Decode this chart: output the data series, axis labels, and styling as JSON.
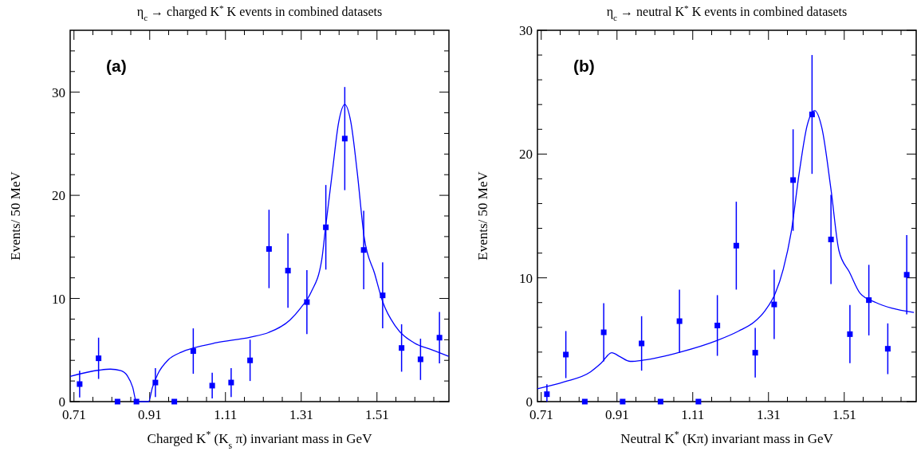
{
  "chart_data": [
    {
      "type": "scatter",
      "title": "η$_{c}$ → charged K$^{*}$ K events in combined datasets",
      "xlabel": "Charged K$^{*}$ (K$_{s}$ π) invariant mass in GeV",
      "ylabel": "Events/ 50 MeV",
      "annotations": [
        "(a)"
      ],
      "xlim": [
        0.7,
        1.7
      ],
      "ylim": [
        0,
        36
      ],
      "xticks": [
        0.71,
        {
          "value": 0.76,
          "label": null
        },
        {
          "value": 0.81,
          "label": null
        },
        {
          "value": 0.86,
          "label": null
        },
        0.91,
        {
          "value": 0.96,
          "label": null
        },
        {
          "value": 1.01,
          "label": null
        },
        {
          "value": 1.06,
          "label": null
        },
        1.11,
        {
          "value": 1.16,
          "label": null
        },
        {
          "value": 1.21,
          "label": null
        },
        {
          "value": 1.26,
          "label": null
        },
        1.31,
        {
          "value": 1.36,
          "label": null
        },
        {
          "value": 1.41,
          "label": null
        },
        {
          "value": 1.46,
          "label": null
        },
        1.51,
        {
          "value": 1.56,
          "label": null
        },
        {
          "value": 1.61,
          "label": null
        },
        {
          "value": 1.66,
          "label": null
        }
      ],
      "yticks": [
        0,
        {
          "value": 2,
          "label": null
        },
        {
          "value": 4,
          "label": null
        },
        {
          "value": 6,
          "label": null
        },
        {
          "value": 8,
          "label": null
        },
        10,
        {
          "value": 12,
          "label": null
        },
        {
          "value": 14,
          "label": null
        },
        {
          "value": 16,
          "label": null
        },
        {
          "value": 18,
          "label": null
        },
        20,
        {
          "value": 22,
          "label": null
        },
        {
          "value": 24,
          "label": null
        },
        {
          "value": 26,
          "label": null
        },
        {
          "value": 28,
          "label": null
        },
        30,
        {
          "value": 32,
          "label": null
        },
        {
          "value": 34,
          "label": null
        }
      ],
      "grid": false,
      "series": [
        {
          "marker": "square",
          "color": "#0000ff",
          "x": [
            0.725,
            0.775,
            0.825,
            0.875,
            0.925,
            0.975,
            1.025,
            1.075,
            1.125,
            1.175,
            1.225,
            1.275,
            1.325,
            1.375,
            1.425,
            1.475,
            1.525,
            1.575,
            1.625,
            1.675
          ],
          "values": [
            1.7,
            4.2,
            0,
            0,
            1.85,
            0,
            4.9,
            1.55,
            1.85,
            4.0,
            14.8,
            12.7,
            9.65,
            16.9,
            25.5,
            14.7,
            10.3,
            5.2,
            4.1,
            6.2
          ],
          "errors": [
            1.3,
            2.0,
            null,
            null,
            1.4,
            null,
            2.2,
            1.25,
            1.4,
            2.0,
            3.8,
            3.6,
            3.1,
            4.1,
            5.0,
            3.8,
            3.2,
            2.3,
            2.0,
            2.5
          ]
        },
        {
          "type": "line",
          "marker": "none",
          "color": "#0000ff",
          "x": [
            0.7,
            0.776,
            0.806,
            0.834,
            0.851,
            0.865,
            0.875,
            0.907,
            0.917,
            0.931,
            0.959,
            0.994,
            1.026,
            1.085,
            1.176,
            1.224,
            1.28,
            1.308,
            1.336,
            1.364,
            1.374,
            1.392,
            1.409,
            1.425,
            1.441,
            1.458,
            1.476,
            1.504,
            1.525,
            1.56,
            1.608,
            1.657,
            1.699
          ],
          "values": [
            2.45,
            3.05,
            3.15,
            3.0,
            2.5,
            1.4,
            0,
            0,
            1.35,
            2.65,
            4.05,
            4.8,
            5.2,
            5.7,
            6.25,
            6.7,
            7.9,
            9.05,
            10.6,
            13.7,
            16.8,
            22.2,
            27.1,
            28.8,
            27.1,
            22.2,
            16.0,
            12.4,
            9.7,
            7.25,
            5.7,
            5.0,
            4.4
          ]
        }
      ]
    },
    {
      "type": "scatter",
      "title": "η$_{c}$ → neutral K$^{*}$ K events in combined datasets",
      "xlabel": "Neutral K$^{*}$ (Kπ) invariant mass in GeV",
      "ylabel": "Events/ 50 MeV",
      "annotations": [
        "(b)"
      ],
      "xlim": [
        0.7,
        1.7
      ],
      "ylim": [
        0,
        30
      ],
      "xticks": [
        0.71,
        {
          "value": 0.76,
          "label": null
        },
        {
          "value": 0.81,
          "label": null
        },
        {
          "value": 0.86,
          "label": null
        },
        0.91,
        {
          "value": 0.96,
          "label": null
        },
        {
          "value": 1.01,
          "label": null
        },
        {
          "value": 1.06,
          "label": null
        },
        1.11,
        {
          "value": 1.16,
          "label": null
        },
        {
          "value": 1.21,
          "label": null
        },
        {
          "value": 1.26,
          "label": null
        },
        1.31,
        {
          "value": 1.36,
          "label": null
        },
        {
          "value": 1.41,
          "label": null
        },
        {
          "value": 1.46,
          "label": null
        },
        1.51,
        {
          "value": 1.56,
          "label": null
        },
        {
          "value": 1.61,
          "label": null
        },
        {
          "value": 1.66,
          "label": null
        }
      ],
      "yticks": [
        0,
        {
          "value": 2,
          "label": null
        },
        {
          "value": 4,
          "label": null
        },
        {
          "value": 6,
          "label": null
        },
        {
          "value": 8,
          "label": null
        },
        10,
        {
          "value": 12,
          "label": null
        },
        {
          "value": 14,
          "label": null
        },
        {
          "value": 16,
          "label": null
        },
        {
          "value": 18,
          "label": null
        },
        20,
        {
          "value": 22,
          "label": null
        },
        {
          "value": 24,
          "label": null
        },
        {
          "value": 26,
          "label": null
        },
        {
          "value": 28,
          "label": null
        },
        30
      ],
      "grid": false,
      "series": [
        {
          "marker": "square",
          "color": "#0000ff",
          "x": [
            0.725,
            0.775,
            0.825,
            0.875,
            0.925,
            0.975,
            1.025,
            1.075,
            1.125,
            1.175,
            1.225,
            1.275,
            1.325,
            1.375,
            1.425,
            1.475,
            1.525,
            1.575,
            1.625,
            1.675
          ],
          "values": [
            0.6,
            3.8,
            0,
            5.6,
            0,
            4.7,
            0,
            6.5,
            0,
            6.15,
            12.6,
            3.95,
            7.85,
            17.9,
            23.2,
            13.1,
            5.45,
            8.2,
            4.27,
            10.25
          ],
          "errors": [
            [
              0,
              1.4
            ],
            1.9,
            null,
            2.35,
            null,
            2.2,
            null,
            2.55,
            null,
            2.45,
            3.55,
            2.0,
            2.8,
            4.1,
            4.8,
            3.6,
            2.35,
            2.85,
            2.05,
            3.2
          ]
        },
        {
          "type": "line",
          "marker": "none",
          "color": "#0000ff",
          "x": [
            0.7,
            0.771,
            0.84,
            0.868,
            0.896,
            0.917,
            0.945,
            0.98,
            1.077,
            1.175,
            1.231,
            1.273,
            1.301,
            1.328,
            1.349,
            1.37,
            1.391,
            1.412,
            1.432,
            1.451,
            1.475,
            1.496,
            1.524,
            1.552,
            1.594,
            1.635,
            1.694
          ],
          "values": [
            1.04,
            1.6,
            2.4,
            3.1,
            3.95,
            3.65,
            3.25,
            3.35,
            4.0,
            4.95,
            5.7,
            6.45,
            7.35,
            8.75,
            10.7,
            13.7,
            18.45,
            22.3,
            23.5,
            22.1,
            17.15,
            12.2,
            10.45,
            8.75,
            8.0,
            7.55,
            7.2
          ]
        }
      ]
    }
  ]
}
